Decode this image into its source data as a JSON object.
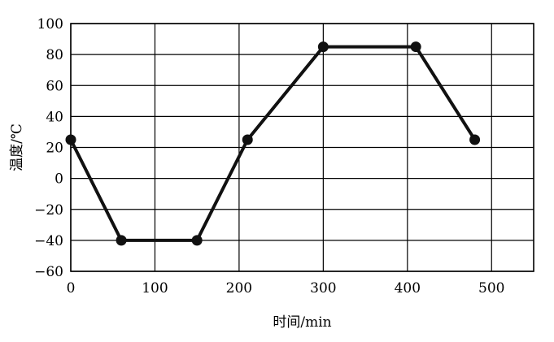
{
  "chart_data": {
    "type": "line",
    "xlabel": "时间/min",
    "ylabel": "温度/℃",
    "xlim": [
      0,
      550
    ],
    "ylim": [
      -60,
      100
    ],
    "x_ticks": [
      0,
      100,
      200,
      300,
      400,
      500
    ],
    "y_ticks": [
      -60,
      -40,
      -20,
      0,
      20,
      40,
      60,
      80,
      100
    ],
    "grid": true,
    "legend": "none",
    "series": [
      {
        "x": [
          0,
          60,
          150,
          210,
          300,
          410,
          480
        ],
        "y": [
          25,
          -40,
          -40,
          25,
          85,
          85,
          25
        ]
      }
    ],
    "line_color": "#111111",
    "marker_color": "#111111"
  }
}
